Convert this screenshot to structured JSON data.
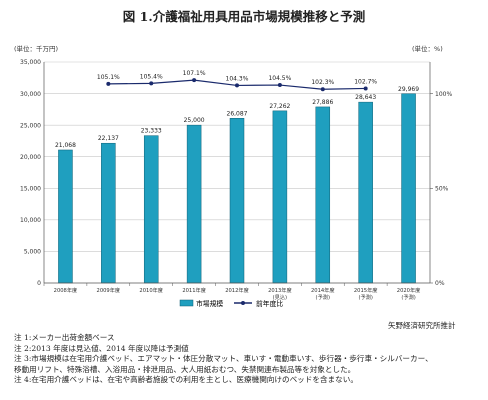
{
  "figure": {
    "title": "図 1.介護福祉用具用品市場規模推移と予測"
  },
  "chart_data": {
    "type": "bar",
    "categories": [
      "2008年度",
      "2009年度",
      "2010年度",
      "2011年度",
      "2012年度",
      "2013年度\n(見込)",
      "2014年度\n(予測)",
      "2015年度\n(予測)",
      "2020年度\n(予測)"
    ],
    "series": [
      {
        "name": "市場規模",
        "type": "bar",
        "axis": "left",
        "values": [
          21068,
          22137,
          23333,
          25000,
          26087,
          27262,
          27886,
          28643,
          29969
        ],
        "labels": [
          "21,068",
          "22,137",
          "23,333",
          "25,000",
          "26,087",
          "27,262",
          "27,886",
          "28,643",
          "29,969"
        ],
        "color": "#1f9fbf"
      },
      {
        "name": "前年度比",
        "type": "line",
        "axis": "right",
        "values": [
          null,
          105.1,
          105.4,
          107.1,
          104.3,
          104.5,
          102.3,
          102.7,
          null
        ],
        "labels": [
          "",
          "105.1%",
          "105.4%",
          "107.1%",
          "104.3%",
          "104.5%",
          "102.3%",
          "102.7%",
          ""
        ],
        "color": "#1a2a6c"
      }
    ],
    "y_left": {
      "unit": "(単位：千万円)",
      "ylim": [
        0,
        35000
      ],
      "ticks": [
        0,
        5000,
        10000,
        15000,
        20000,
        25000,
        30000,
        35000
      ],
      "tick_labels": [
        "0",
        "5,000",
        "10,000",
        "15,000",
        "20,000",
        "25,000",
        "30,000",
        "35,000"
      ]
    },
    "y_right": {
      "unit": "(単位：%)",
      "ylim": [
        0,
        116.667
      ],
      "ticks": [
        0,
        50,
        100
      ],
      "tick_labels": [
        "0%",
        "50%",
        "100%"
      ]
    },
    "xlabel": "",
    "grid": true,
    "legend_position": "bottom"
  },
  "source": "矢野経済研究所推計",
  "notes": [
    "注 1:メーカー出荷金額ベース",
    "注 2:2013 年度は見込値、2014 年度以降は予測値",
    "注 3:市場規模は在宅用介護ベッド、エアマット・体圧分散マット、車いす・電動車いす、歩行器・歩行車・シルバーカー、",
    "移動用リフト、特殊浴槽、入浴用品・排泄用品、大人用紙おむつ、失禁関連布製品等を対象とした。",
    "注 4:在宅用介護ベッドは、在宅や高齢者施設での利用を主とし、医療機関向けのベッドを含まない。"
  ]
}
